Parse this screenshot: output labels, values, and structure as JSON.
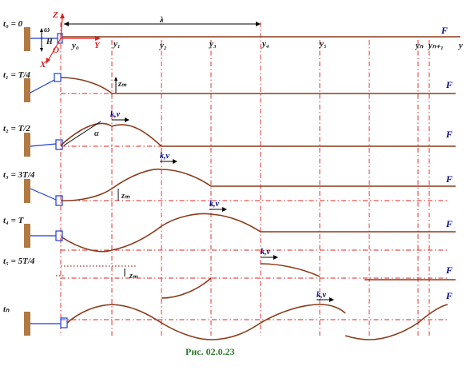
{
  "rows": [
    {
      "time": "t₀ = 0"
    },
    {
      "time": "t₁ = T/4"
    },
    {
      "time": "t₂ = T/2"
    },
    {
      "time": "t₃ = 3T/4"
    },
    {
      "time": "t₄ = T"
    },
    {
      "time": "t₅ = 5T/4"
    },
    {
      "time": "tₙ"
    }
  ],
  "y_labels": [
    "y₀",
    "y₁",
    "y₂",
    "y₃",
    "y₄",
    "y₅",
    "yₙ",
    "yₙ₊₁",
    "y"
  ],
  "axis": {
    "z": "Z",
    "x": "X",
    "y": "Y",
    "origin": "O",
    "omega": "ω",
    "h": "H"
  },
  "lambda": "λ",
  "force": "F",
  "wave_label": "k,v",
  "amplitude": "zₘ",
  "angle": "α",
  "caption": "Рис. 02.0.23",
  "colors": {
    "rope": "#8b3a1a",
    "grid": "#dd2222",
    "driver": "#1a3fd6",
    "caption": "#2e7d2e",
    "force": "#000080"
  }
}
